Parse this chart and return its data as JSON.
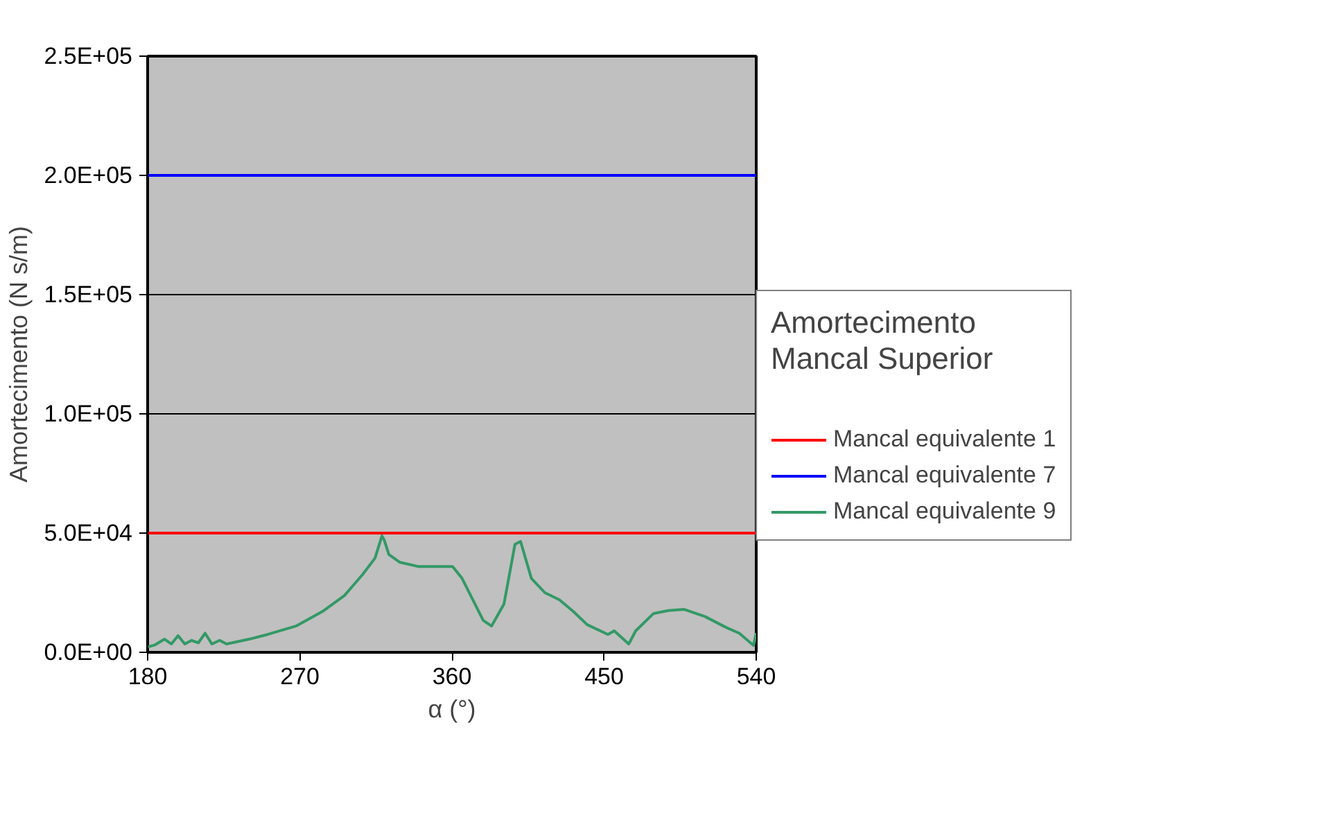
{
  "chart_data": {
    "type": "line",
    "title": "Amortecimento\nMancal Superior",
    "xlabel": "α (°)",
    "ylabel": "Amortecimento (N s/m)",
    "xlim": [
      180,
      540
    ],
    "xticks": [
      180,
      270,
      360,
      450,
      540
    ],
    "ylim": [
      0,
      250000
    ],
    "yticks": [
      {
        "value": 0,
        "label": "0.0E+00"
      },
      {
        "value": 50000,
        "label": "5.0E+04"
      },
      {
        "value": 100000,
        "label": "1.0E+05"
      },
      {
        "value": 150000,
        "label": "1.5E+05"
      },
      {
        "value": 200000,
        "label": "2.0E+05"
      },
      {
        "value": 250000,
        "label": "2.5E+05"
      }
    ],
    "grid": "y",
    "legend": "right",
    "marker": "none",
    "line_style": "solid",
    "series": [
      {
        "name": "Mancal equivalente 1",
        "color": "#ff0000",
        "x": [
          180,
          540
        ],
        "values": [
          50000,
          50000
        ]
      },
      {
        "name": "Mancal equivalente 7",
        "color": "#0000ff",
        "x": [
          180,
          540
        ],
        "values": [
          200000,
          200000
        ]
      },
      {
        "name": "Mancal equivalente 9",
        "color": "#339966",
        "x": [
          180,
          184,
          190,
          194,
          198,
          202,
          206,
          210,
          214,
          218,
          222.6,
          226.7,
          240,
          251,
          267.7,
          284,
          296.4,
          307,
          314.5,
          318.6,
          320,
          322.7,
          329,
          340,
          349.8,
          360.4,
          366,
          378.5,
          383.4,
          390.8,
          397.3,
          400.6,
          407,
          415,
          423.6,
          432,
          440,
          452.3,
          456,
          464.6,
          468.7,
          479.3,
          488,
          497.4,
          509.7,
          522,
          530,
          538.4,
          540
        ],
        "values": [
          2300,
          3000,
          5500,
          3500,
          7000,
          3500,
          5000,
          4000,
          8000,
          3500,
          5000,
          3500,
          5500,
          7500,
          11000,
          17400,
          23800,
          32500,
          39500,
          48800,
          47000,
          41000,
          37800,
          36000,
          36000,
          36000,
          31000,
          13400,
          11000,
          20300,
          45300,
          46500,
          31000,
          25000,
          22000,
          17000,
          11600,
          7500,
          9000,
          3500,
          9000,
          16300,
          17500,
          18000,
          15000,
          10500,
          8000,
          2900,
          8000
        ]
      }
    ]
  }
}
